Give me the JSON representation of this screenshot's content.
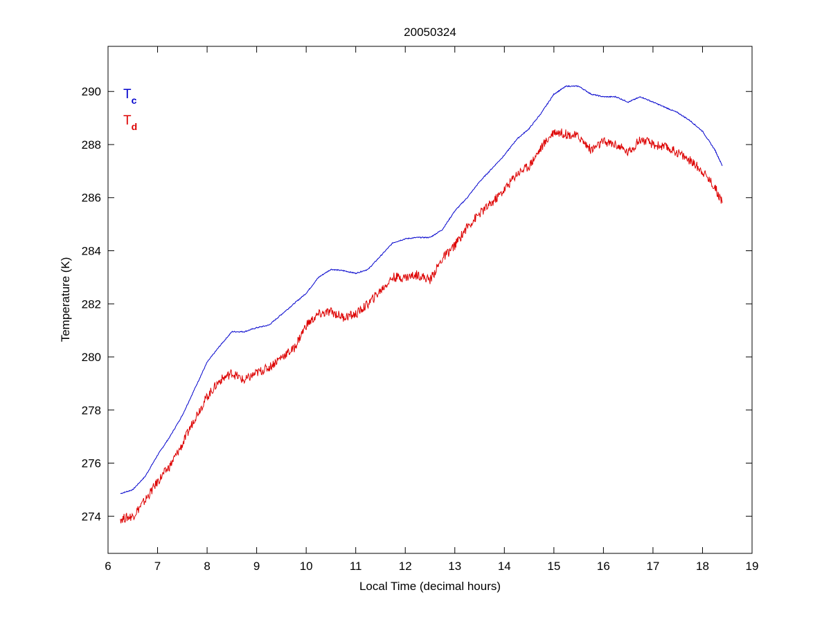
{
  "chart_data": {
    "type": "line",
    "title": "20050324",
    "xlabel": "Local Time (decimal hours)",
    "ylabel": "Temperature (K)",
    "xlim": [
      6,
      19
    ],
    "ylim": [
      272.6,
      291.7
    ],
    "xticks": [
      6,
      7,
      8,
      9,
      10,
      11,
      12,
      13,
      14,
      15,
      16,
      17,
      18,
      19
    ],
    "yticks": [
      274,
      276,
      278,
      280,
      282,
      284,
      286,
      288,
      290
    ],
    "grid": false,
    "legend_placement": "top-left",
    "x": [
      6.25,
      6.5,
      6.75,
      7,
      7.25,
      7.5,
      7.75,
      8,
      8.25,
      8.5,
      8.75,
      9,
      9.25,
      9.5,
      9.75,
      10,
      10.25,
      10.5,
      10.75,
      11,
      11.25,
      11.5,
      11.75,
      12,
      12.25,
      12.5,
      12.75,
      13,
      13.25,
      13.5,
      13.75,
      14,
      14.25,
      14.5,
      14.75,
      15,
      15.25,
      15.5,
      15.75,
      16,
      16.25,
      16.5,
      16.75,
      17,
      17.25,
      17.5,
      17.75,
      18,
      18.25,
      18.4
    ],
    "series": [
      {
        "name": "T",
        "subscript": "c",
        "color": "#0000cc",
        "values": [
          274.85,
          275.0,
          275.5,
          276.3,
          277.0,
          277.8,
          278.8,
          279.8,
          280.4,
          280.95,
          280.95,
          281.1,
          281.2,
          281.6,
          282.0,
          282.4,
          283.0,
          283.3,
          283.25,
          283.15,
          283.3,
          283.8,
          284.3,
          284.45,
          284.5,
          284.5,
          284.8,
          285.5,
          286.0,
          286.6,
          287.1,
          287.6,
          288.2,
          288.6,
          289.2,
          289.9,
          290.2,
          290.2,
          289.9,
          289.8,
          289.8,
          289.6,
          289.8,
          289.6,
          289.4,
          289.2,
          288.9,
          288.5,
          287.8,
          287.2
        ]
      },
      {
        "name": "T",
        "subscript": "d",
        "color": "#dd0000",
        "values": [
          273.9,
          274.0,
          274.6,
          275.3,
          275.9,
          276.7,
          277.7,
          278.5,
          279.1,
          279.4,
          279.1,
          279.4,
          279.6,
          280.0,
          280.3,
          281.2,
          281.6,
          281.7,
          281.5,
          281.6,
          282.0,
          282.5,
          283.0,
          283.0,
          283.1,
          282.9,
          283.7,
          284.2,
          284.9,
          285.4,
          285.8,
          286.3,
          286.9,
          287.2,
          287.9,
          288.5,
          288.4,
          288.3,
          287.8,
          288.1,
          288.0,
          287.7,
          288.2,
          288.0,
          287.9,
          287.7,
          287.4,
          287.0,
          286.4,
          285.8
        ]
      }
    ]
  }
}
